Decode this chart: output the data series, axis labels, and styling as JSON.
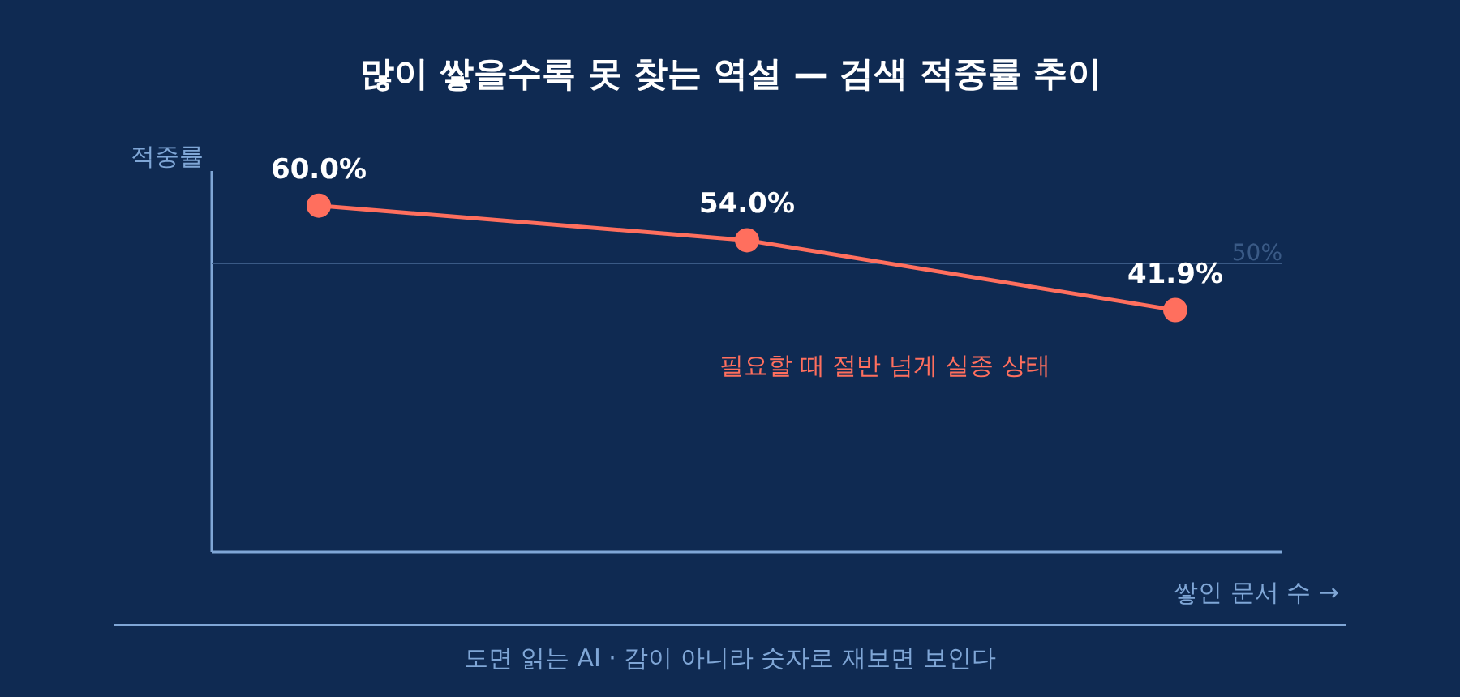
{
  "chart_data": {
    "type": "line",
    "title": "많이 쌓을수록 못 찾는 역설 — 검색 적중률 추이",
    "xlabel": "쌓인 문서 수 →",
    "ylabel": "적중률",
    "categories": [
      null,
      null,
      null
    ],
    "series": [
      {
        "color": "#ff6f5e",
        "values": [
          60.0,
          54.0,
          41.9
        ],
        "value_labels": [
          "60.0%",
          "54.0%",
          "41.9%"
        ]
      }
    ],
    "ylim": [
      0,
      66
    ],
    "marker": "circle",
    "line_style": "solid",
    "ref_lines": [
      {
        "axis": "y",
        "value": 50,
        "label": "50%",
        "color": "#3a5a86"
      }
    ],
    "annotations": [
      "필요할 때 절반 넘게 실종 상태",
      "도면 읽는 AI · 감이 아니라 숫자로 재보면 보인다"
    ]
  }
}
